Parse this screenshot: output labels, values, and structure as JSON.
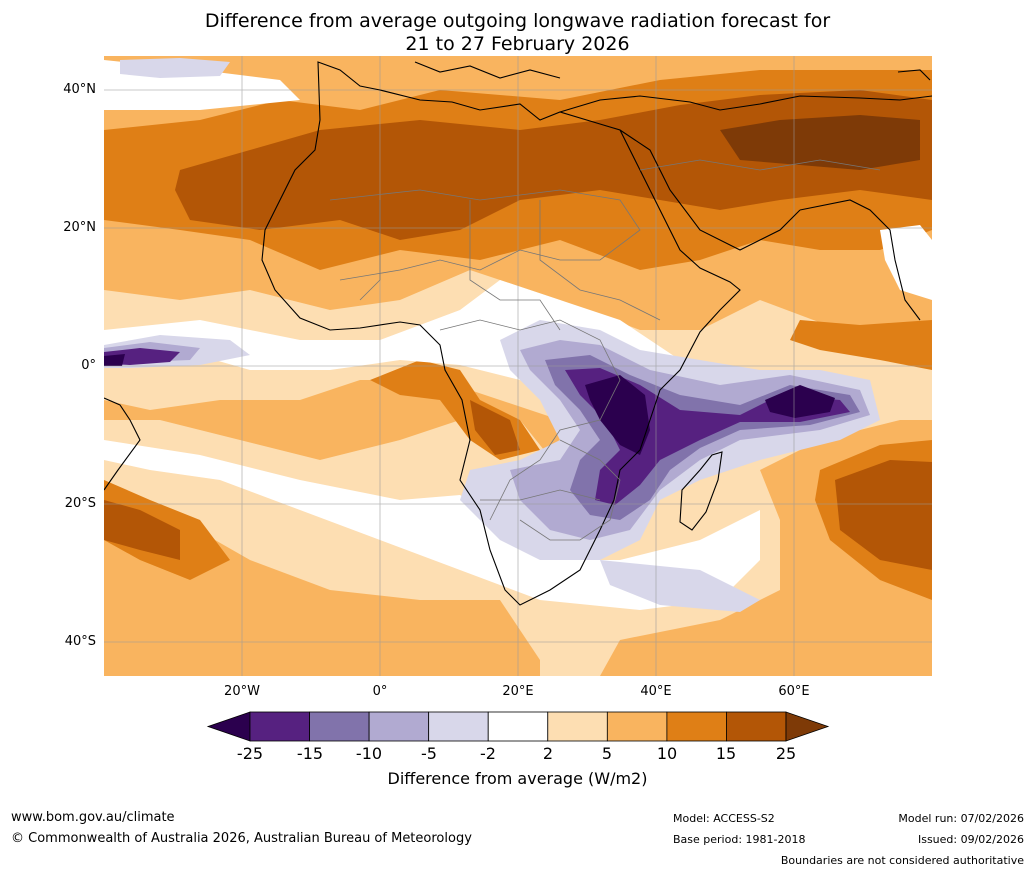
{
  "title_line1": "Difference from average outgoing longwave radiation forecast for",
  "title_line2": "21 to 27 February 2026",
  "map": {
    "lat_labels": [
      "40°N",
      "20°N",
      "0°",
      "20°S",
      "40°S"
    ],
    "lon_labels": [
      "20°W",
      "0°",
      "20°E",
      "40°E",
      "60°E"
    ],
    "extent": {
      "lon_min": -40,
      "lon_max": 80,
      "lat_min": -45,
      "lat_max": 45
    }
  },
  "colorbar": {
    "colors": [
      "#2b004e",
      "#562180",
      "#8173ab",
      "#b1aad1",
      "#d8d7ea",
      "#ffffff",
      "#fddeb2",
      "#f9b45f",
      "#df7f16",
      "#b35606",
      "#7e3a07"
    ],
    "tick_labels": [
      "-25",
      "-15",
      "-10",
      "-5",
      "-2",
      "2",
      "5",
      "10",
      "15",
      "25"
    ],
    "title": "Difference from average (W/m2)"
  },
  "footer": {
    "url": "www.bom.gov.au/climate",
    "copyright": "© Commonwealth of Australia 2026, Australian Bureau of Meteorology",
    "model": "Model: ACCESS-S2",
    "base_period": "Base period: 1981-2018",
    "model_run": "Model run: 07/02/2026",
    "issued": "Issued: 09/02/2026",
    "disclaimer": "Boundaries are not considered authoritative"
  }
}
